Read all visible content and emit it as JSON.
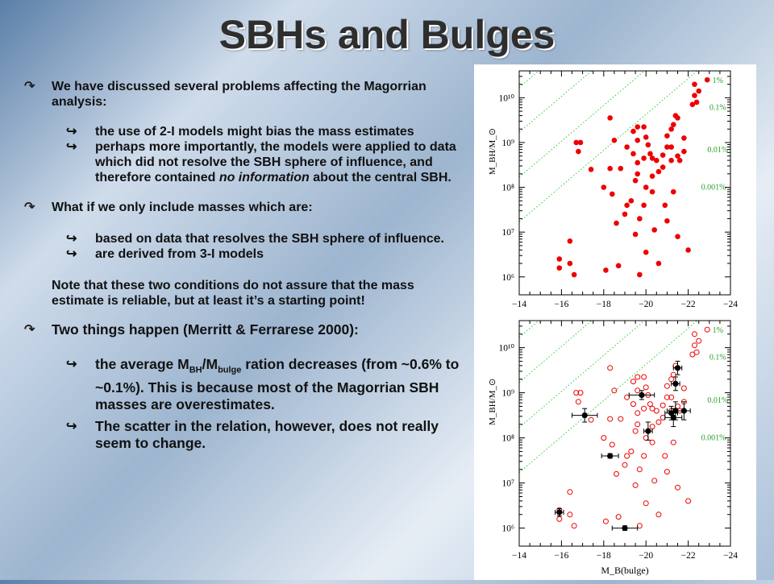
{
  "title": "SBHs and Bulges",
  "bullets": {
    "b1_text": "We have discussed several problems affecting the Magorrian analysis:",
    "b1_sub1": "the use of 2-I models might bias the mass estimates",
    "b1_sub2_pre": "perhaps more importantly, the models were applied to data which did not resolve the SBH sphere of influence, and therefore contained ",
    "b1_sub2_em": "no information",
    "b1_sub2_post": " about the central SBH.",
    "b2_text": "What if we only include masses which are:",
    "b2_sub1": "based on data that resolves the SBH sphere of influence.",
    "b2_sub2": "are derived from 3-I models",
    "note": "Note that these two conditions do not assure that the mass estimate is reliable, but at least it’s a starting point!",
    "b3_text": "Two things happen (Merritt & Ferrarese 2000):",
    "b3_sub1_a": "the average M",
    "b3_sub1_sub1": "BH",
    "b3_sub1_b": "/M",
    "b3_sub1_sub2": "bulge",
    "b3_sub1_c": " ration decreases (from ~0.6% to ~0.1%). This is because most of the Magorrian SBH masses are overestimates.",
    "b3_sub2": "The scatter in the relation, however, does not really seem to change."
  },
  "colors": {
    "points": "#ee0000",
    "guides": "#33cc33",
    "guide_labels": "#2ca02c",
    "selected": "#000000"
  },
  "chart_data": [
    {
      "type": "scatter",
      "xlabel": "",
      "ylabel": "M_BH/M_⊙",
      "xlim": [
        -14,
        -24
      ],
      "ylim": [
        5.6,
        10.6
      ],
      "x_ticks": [
        "−14",
        "−16",
        "−18",
        "−20",
        "−22",
        "−24"
      ],
      "y_ticks": [
        "10⁶",
        "10⁷",
        "10⁸",
        "10⁹",
        "10¹⁰"
      ],
      "guide_labels": [
        "1%",
        "0.1%",
        "0.01%",
        "0.001%"
      ],
      "guide_offsets_dex": [
        4.63,
        3.63,
        2.63,
        1.63
      ],
      "series": [
        {
          "marker": "filled-red",
          "points": [
            [
              -15.9,
              6.4
            ],
            [
              -15.9,
              6.2
            ],
            [
              -16.4,
              6.3
            ],
            [
              -16.6,
              6.05
            ],
            [
              -16.4,
              6.8
            ],
            [
              -16.8,
              8.8
            ],
            [
              -17.4,
              8.4
            ],
            [
              -16.7,
              9.0
            ],
            [
              -16.9,
              9.0
            ],
            [
              -18.3,
              9.55
            ],
            [
              -18.5,
              9.05
            ],
            [
              -19.4,
              9.25
            ],
            [
              -19.6,
              9.35
            ],
            [
              -19.9,
              9.35
            ],
            [
              -19.6,
              9.05
            ],
            [
              -20.0,
              9.12
            ],
            [
              -19.1,
              8.9
            ],
            [
              -19.4,
              8.75
            ],
            [
              -19.6,
              8.55
            ],
            [
              -19.9,
              8.65
            ],
            [
              -20.2,
              8.75
            ],
            [
              -18.8,
              8.42
            ],
            [
              -18.3,
              8.42
            ],
            [
              -18.0,
              8.0
            ],
            [
              -18.4,
              7.85
            ],
            [
              -18.6,
              7.2
            ],
            [
              -19.1,
              7.6
            ],
            [
              -19.3,
              7.7
            ],
            [
              -19.5,
              6.95
            ],
            [
              -19.7,
              7.3
            ],
            [
              -19.9,
              7.6
            ],
            [
              -20.4,
              7.05
            ],
            [
              -20.0,
              8.0
            ],
            [
              -20.3,
              7.9
            ],
            [
              -20.3,
              8.25
            ],
            [
              -20.6,
              8.35
            ],
            [
              -20.8,
              8.45
            ],
            [
              -20.3,
              8.65
            ],
            [
              -20.5,
              8.6
            ],
            [
              -20.8,
              8.72
            ],
            [
              -21.0,
              8.9
            ],
            [
              -21.2,
              8.9
            ],
            [
              -21.0,
              9.15
            ],
            [
              -21.3,
              9.4
            ],
            [
              -21.2,
              9.3
            ],
            [
              -21.4,
              9.6
            ],
            [
              -21.5,
              9.55
            ],
            [
              -21.8,
              9.1
            ],
            [
              -21.6,
              8.6
            ],
            [
              -21.2,
              8.6
            ],
            [
              -21.5,
              8.7
            ],
            [
              -21.8,
              8.8
            ],
            [
              -22.2,
              9.85
            ],
            [
              -22.4,
              9.9
            ],
            [
              -22.3,
              10.3
            ],
            [
              -22.5,
              10.15
            ],
            [
              -22.9,
              10.4
            ],
            [
              -22.3,
              10.05
            ],
            [
              -18.7,
              6.25
            ],
            [
              -19.0,
              7.4
            ],
            [
              -18.1,
              6.15
            ],
            [
              -20.0,
              6.55
            ],
            [
              -21.0,
              7.25
            ],
            [
              -21.5,
              6.9
            ],
            [
              -22.0,
              6.6
            ],
            [
              -19.7,
              6.05
            ],
            [
              -20.6,
              6.3
            ],
            [
              -19.6,
              8.3
            ],
            [
              -20.9,
              7.6
            ],
            [
              -21.3,
              7.9
            ],
            [
              -20.1,
              8.95
            ],
            [
              -19.5,
              8.15
            ]
          ]
        }
      ]
    },
    {
      "type": "scatter",
      "xlabel": "M_B(bulge)",
      "ylabel": "M_BH/M_⊙",
      "xlim": [
        -14,
        -24
      ],
      "ylim": [
        5.6,
        10.6
      ],
      "x_ticks": [
        "−14",
        "−16",
        "−18",
        "−20",
        "−22",
        "−24"
      ],
      "y_ticks": [
        "10⁶",
        "10⁷",
        "10⁸",
        "10⁹",
        "10¹⁰"
      ],
      "guide_labels": [
        "1%",
        "0.1%",
        "0.01%",
        "0.001%"
      ],
      "guide_offsets_dex": [
        4.63,
        3.63,
        2.63,
        1.63
      ],
      "series": [
        {
          "marker": "open-red",
          "points": [
            [
              -15.9,
              6.4
            ],
            [
              -15.9,
              6.2
            ],
            [
              -16.4,
              6.3
            ],
            [
              -16.6,
              6.05
            ],
            [
              -16.4,
              6.8
            ],
            [
              -16.8,
              8.8
            ],
            [
              -17.4,
              8.4
            ],
            [
              -16.7,
              9.0
            ],
            [
              -16.9,
              9.0
            ],
            [
              -18.3,
              9.55
            ],
            [
              -18.5,
              9.05
            ],
            [
              -19.4,
              9.25
            ],
            [
              -19.6,
              9.35
            ],
            [
              -19.9,
              9.35
            ],
            [
              -19.6,
              9.05
            ],
            [
              -20.0,
              9.12
            ],
            [
              -19.1,
              8.9
            ],
            [
              -19.4,
              8.75
            ],
            [
              -19.6,
              8.55
            ],
            [
              -19.9,
              8.65
            ],
            [
              -20.2,
              8.75
            ],
            [
              -18.8,
              8.42
            ],
            [
              -18.3,
              8.42
            ],
            [
              -18.0,
              8.0
            ],
            [
              -18.4,
              7.85
            ],
            [
              -18.6,
              7.2
            ],
            [
              -19.1,
              7.6
            ],
            [
              -19.3,
              7.7
            ],
            [
              -19.5,
              6.95
            ],
            [
              -19.7,
              7.3
            ],
            [
              -19.9,
              7.6
            ],
            [
              -20.4,
              7.05
            ],
            [
              -20.0,
              8.0
            ],
            [
              -20.3,
              7.9
            ],
            [
              -20.3,
              8.25
            ],
            [
              -20.6,
              8.35
            ],
            [
              -20.8,
              8.45
            ],
            [
              -20.3,
              8.65
            ],
            [
              -20.5,
              8.6
            ],
            [
              -20.8,
              8.72
            ],
            [
              -21.0,
              8.9
            ],
            [
              -21.2,
              8.9
            ],
            [
              -21.0,
              9.15
            ],
            [
              -21.3,
              9.4
            ],
            [
              -21.2,
              9.3
            ],
            [
              -21.4,
              9.6
            ],
            [
              -21.5,
              9.55
            ],
            [
              -21.8,
              9.1
            ],
            [
              -21.6,
              8.6
            ],
            [
              -21.2,
              8.6
            ],
            [
              -21.5,
              8.7
            ],
            [
              -21.8,
              8.8
            ],
            [
              -22.2,
              9.85
            ],
            [
              -22.4,
              9.9
            ],
            [
              -22.3,
              10.3
            ],
            [
              -22.5,
              10.15
            ],
            [
              -22.9,
              10.4
            ],
            [
              -22.3,
              10.05
            ],
            [
              -18.7,
              6.25
            ],
            [
              -19.0,
              7.4
            ],
            [
              -18.1,
              6.15
            ],
            [
              -20.0,
              6.55
            ],
            [
              -21.0,
              7.25
            ],
            [
              -21.5,
              6.9
            ],
            [
              -22.0,
              6.6
            ],
            [
              -19.7,
              6.05
            ],
            [
              -20.6,
              6.3
            ],
            [
              -19.6,
              8.3
            ],
            [
              -20.9,
              7.6
            ],
            [
              -21.3,
              7.9
            ],
            [
              -20.1,
              8.95
            ],
            [
              -19.5,
              8.15
            ]
          ]
        },
        {
          "marker": "filled-black-errorbar",
          "points": [
            {
              "x": -15.9,
              "y": 6.35,
              "xerr": 0.2,
              "yerr": 0.08
            },
            {
              "x": -17.1,
              "y": 8.5,
              "xerr": 0.6,
              "yerr": 0.15
            },
            {
              "x": -18.3,
              "y": 7.6,
              "xerr": 0.4,
              "yerr": 0.05
            },
            {
              "x": -19.0,
              "y": 6.0,
              "xerr": 0.6,
              "yerr": 0.05
            },
            {
              "x": -19.8,
              "y": 8.95,
              "xerr": 0.6,
              "yerr": 0.1
            },
            {
              "x": -20.1,
              "y": 8.15,
              "xerr": 0.2,
              "yerr": 0.2
            },
            {
              "x": -21.2,
              "y": 8.55,
              "xerr": 0.3,
              "yerr": 0.15
            },
            {
              "x": -21.3,
              "y": 8.45,
              "xerr": 0.4,
              "yerr": 0.2
            },
            {
              "x": -21.4,
              "y": 8.6,
              "xerr": 0.4,
              "yerr": 0.2
            },
            {
              "x": -21.4,
              "y": 9.2,
              "xerr": 0.2,
              "yerr": 0.15
            },
            {
              "x": -21.5,
              "y": 9.55,
              "xerr": 0.2,
              "yerr": 0.15
            },
            {
              "x": -21.8,
              "y": 8.6,
              "xerr": 0.3,
              "yerr": 0.2
            }
          ]
        }
      ]
    }
  ]
}
